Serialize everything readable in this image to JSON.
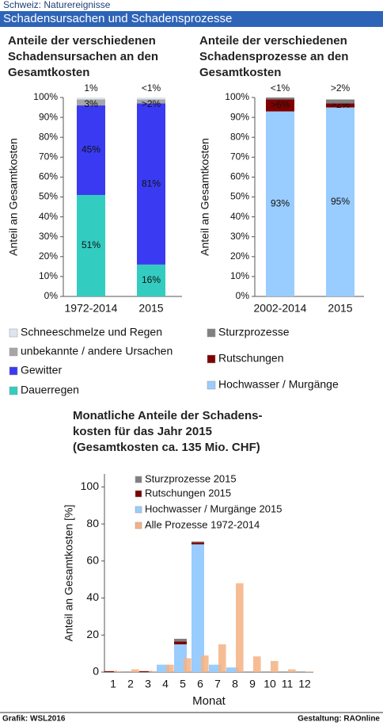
{
  "header": {
    "top": "Schweiz: Naturereignisse",
    "banner": "Schadensursachen und Schadensprozesse"
  },
  "chart_data": [
    {
      "type": "bar",
      "stacked": true,
      "title": [
        "Anteile der verschiedenen",
        "Schadensursachen an den",
        "Gesamtkosten"
      ],
      "y_label": "Anteil an Gesamtkosten",
      "categories": [
        "1972-2014",
        "2015"
      ],
      "ylim": [
        0,
        100
      ],
      "yticks": [
        {
          "value": 0,
          "label": "0%"
        },
        {
          "value": 10,
          "label": "10%"
        },
        {
          "value": 20,
          "label": "20%"
        },
        {
          "value": 30,
          "label": "30%"
        },
        {
          "value": 40,
          "label": "40%"
        },
        {
          "value": 50,
          "label": "50%"
        },
        {
          "value": 60,
          "label": "60%"
        },
        {
          "value": 70,
          "label": "70%"
        },
        {
          "value": 80,
          "label": "80%"
        },
        {
          "value": 90,
          "label": "90%"
        },
        {
          "value": 100,
          "label": "100%"
        }
      ],
      "series": [
        {
          "name": "Dauerregen",
          "color": "#33ccc0",
          "values": [
            51,
            16
          ],
          "value_labels": [
            "51%",
            "16%"
          ]
        },
        {
          "name": "Gewitter",
          "color": "#3a3af2",
          "values": [
            45,
            81
          ],
          "value_labels": [
            "45%",
            "81%"
          ]
        },
        {
          "name": "unbekannte / andere Ursachen",
          "color": "#a6a6a6",
          "values": [
            3,
            2
          ],
          "value_labels": [
            "3%",
            ">2%"
          ]
        },
        {
          "name": "Schneeschmelze und Regen",
          "color": "#dde6f0",
          "values": [
            1,
            1
          ],
          "value_labels": [
            "1%",
            "<1%"
          ]
        }
      ]
    },
    {
      "type": "bar",
      "stacked": true,
      "title": [
        "Anteile der verschiedenen",
        "Schadensprozesse an den",
        "Gesamtkosten"
      ],
      "y_label": "Anteil an Gesamtkosten",
      "categories": [
        "2002-2014",
        "2015"
      ],
      "ylim": [
        0,
        100
      ],
      "yticks": [
        {
          "value": 0,
          "label": "0%"
        },
        {
          "value": 10,
          "label": "10%"
        },
        {
          "value": 20,
          "label": "20%"
        },
        {
          "value": 30,
          "label": "30%"
        },
        {
          "value": 40,
          "label": "40%"
        },
        {
          "value": 50,
          "label": "50%"
        },
        {
          "value": 60,
          "label": "60%"
        },
        {
          "value": 70,
          "label": "70%"
        },
        {
          "value": 80,
          "label": "80%"
        },
        {
          "value": 90,
          "label": "90%"
        },
        {
          "value": 100,
          "label": "100%"
        }
      ],
      "series": [
        {
          "name": "Hochwasser / Murgänge",
          "color": "#99ccff",
          "values": [
            93,
            95
          ],
          "value_labels": [
            "93%",
            "95%"
          ]
        },
        {
          "name": "Rutschungen",
          "color": "#800000",
          "values": [
            6,
            2
          ],
          "value_labels": [
            ">6%",
            ">2%"
          ]
        },
        {
          "name": "Sturzprozesse",
          "color": "#808080",
          "values": [
            1,
            2
          ],
          "value_labels": [
            "<1%",
            ">2%"
          ]
        }
      ]
    },
    {
      "type": "bar",
      "stacked": true,
      "title": [
        "Monatliche Anteile der Schadens-",
        "kosten für das Jahr 2015",
        "(Gesamtkosten ca. 135 Mio. CHF)"
      ],
      "y_label": "Anteil an Gesamtkosten [%]",
      "x_label": "Monat",
      "categories": [
        "1",
        "2",
        "3",
        "4",
        "5",
        "6",
        "7",
        "8",
        "9",
        "10",
        "11",
        "12"
      ],
      "ylim": [
        0,
        107
      ],
      "yticks": [
        0,
        20,
        40,
        60,
        80,
        100
      ],
      "series": [
        {
          "name": "Hochwasser / Murgänge 2015",
          "color": "#99ccff",
          "values": [
            0,
            0,
            0,
            4,
            15,
            69,
            4,
            2.5,
            0,
            0,
            0,
            0
          ]
        },
        {
          "name": "Rutschungen 2015",
          "color": "#7b0000",
          "values": [
            0.5,
            0,
            0.5,
            0,
            1.5,
            1,
            0,
            0,
            0,
            0,
            0,
            0
          ]
        },
        {
          "name": "Sturzprozesse 2015",
          "color": "#7f7f7f",
          "values": [
            0,
            0,
            0,
            0,
            1.5,
            0.5,
            0,
            0,
            0,
            0,
            0,
            0
          ]
        },
        {
          "name": "Alle Prozesse 1972-2014",
          "color": "#f4b183",
          "overlay": true,
          "values": [
            0.5,
            1.5,
            0.5,
            4,
            7.5,
            9,
            15,
            48,
            8.5,
            6,
            1.5,
            0.3
          ]
        }
      ]
    }
  ],
  "footer": {
    "left": "Grafik: WSL2016",
    "right": "Gestaltung: RAOnline"
  }
}
